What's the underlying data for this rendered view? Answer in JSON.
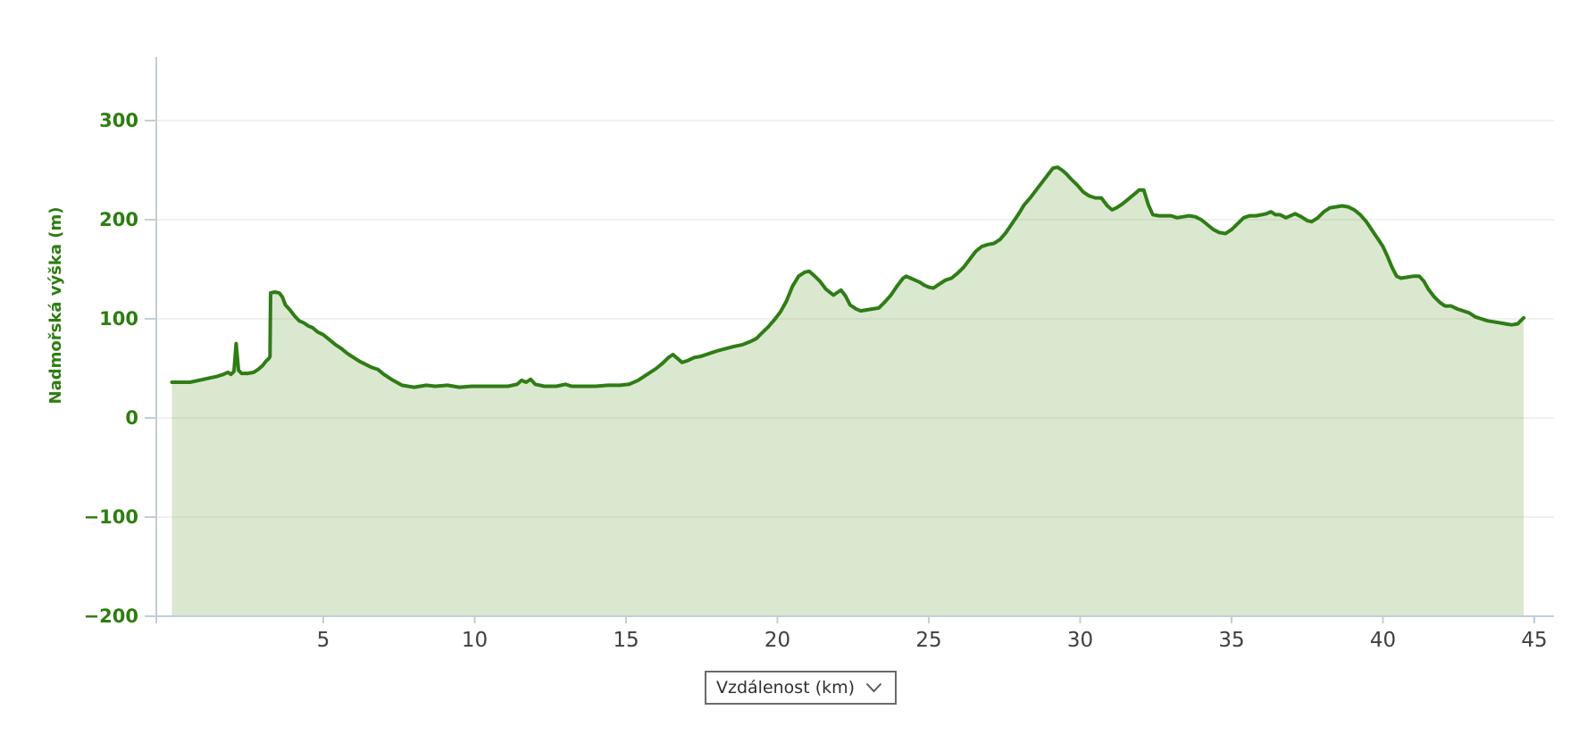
{
  "page": {
    "background": "#ffffff"
  },
  "controls": {
    "x_axis_selector": {
      "value": "Vzdálenost (km)",
      "icon": "chevron-down"
    }
  },
  "chart_data": {
    "type": "area",
    "title": "",
    "xlabel": "Vzdálenost (km)",
    "ylabel": "Nadmořská výška (m)",
    "x_ticks": [
      5,
      10,
      15,
      20,
      25,
      30,
      35,
      40,
      45
    ],
    "y_ticks": [
      300,
      200,
      100,
      0,
      -100,
      -200
    ],
    "y_tick_labels": [
      "300",
      "200",
      "100",
      "0",
      "−100",
      "−200"
    ],
    "xlim": [
      -0.5,
      45.65
    ],
    "ylim": [
      -200,
      363
    ],
    "grid": "horizontal-only",
    "legend": "none",
    "colors": {
      "line": "#2f7d15",
      "fill": "rgba(122,170,83,0.27)",
      "axis": "#c3cdd7",
      "gridline": "#ececec",
      "y_label_text": "#2e7d12",
      "x_label_text": "#3f3f3f"
    },
    "series": [
      {
        "name": "elevation_profile",
        "points": [
          [
            0,
            36
          ],
          [
            0.3,
            36
          ],
          [
            0.6,
            36
          ],
          [
            0.9,
            38
          ],
          [
            1.2,
            40
          ],
          [
            1.5,
            42
          ],
          [
            1.7,
            44
          ],
          [
            1.85,
            46
          ],
          [
            1.95,
            44
          ],
          [
            2.05,
            47
          ],
          [
            2.12,
            75
          ],
          [
            2.2,
            48
          ],
          [
            2.3,
            45
          ],
          [
            2.5,
            45
          ],
          [
            2.7,
            46
          ],
          [
            2.85,
            49
          ],
          [
            3,
            53
          ],
          [
            3.1,
            57
          ],
          [
            3.2,
            60
          ],
          [
            3.24,
            62
          ],
          [
            3.26,
            126
          ],
          [
            3.4,
            127
          ],
          [
            3.55,
            126
          ],
          [
            3.65,
            122
          ],
          [
            3.75,
            114
          ],
          [
            3.9,
            109
          ],
          [
            4.05,
            103
          ],
          [
            4.2,
            98
          ],
          [
            4.35,
            96
          ],
          [
            4.5,
            93
          ],
          [
            4.65,
            91
          ],
          [
            4.8,
            87
          ],
          [
            5,
            84
          ],
          [
            5.2,
            79
          ],
          [
            5.4,
            74
          ],
          [
            5.6,
            70
          ],
          [
            5.8,
            65
          ],
          [
            6,
            61
          ],
          [
            6.2,
            57
          ],
          [
            6.4,
            54
          ],
          [
            6.6,
            51
          ],
          [
            6.8,
            49
          ],
          [
            7,
            44
          ],
          [
            7.3,
            38
          ],
          [
            7.6,
            33
          ],
          [
            8,
            31
          ],
          [
            8.4,
            33
          ],
          [
            8.7,
            32
          ],
          [
            9.1,
            33
          ],
          [
            9.5,
            31
          ],
          [
            9.9,
            32
          ],
          [
            10.3,
            32
          ],
          [
            10.7,
            32
          ],
          [
            11.1,
            32
          ],
          [
            11.4,
            34
          ],
          [
            11.55,
            38
          ],
          [
            11.7,
            36
          ],
          [
            11.85,
            39
          ],
          [
            12,
            34
          ],
          [
            12.3,
            32
          ],
          [
            12.7,
            32
          ],
          [
            13,
            34
          ],
          [
            13.2,
            32
          ],
          [
            13.6,
            32
          ],
          [
            14,
            32
          ],
          [
            14.4,
            33
          ],
          [
            14.8,
            33
          ],
          [
            15.1,
            34
          ],
          [
            15.4,
            38
          ],
          [
            15.7,
            44
          ],
          [
            16,
            50
          ],
          [
            16.2,
            55
          ],
          [
            16.4,
            61
          ],
          [
            16.55,
            64
          ],
          [
            16.7,
            60
          ],
          [
            16.85,
            56
          ],
          [
            17.05,
            58
          ],
          [
            17.25,
            61
          ],
          [
            17.45,
            62
          ],
          [
            17.65,
            64
          ],
          [
            17.85,
            66
          ],
          [
            18.05,
            68
          ],
          [
            18.3,
            70
          ],
          [
            18.55,
            72
          ],
          [
            18.85,
            74
          ],
          [
            19.1,
            77
          ],
          [
            19.3,
            80
          ],
          [
            19.5,
            86
          ],
          [
            19.7,
            92
          ],
          [
            19.9,
            99
          ],
          [
            20.1,
            107
          ],
          [
            20.3,
            118
          ],
          [
            20.5,
            133
          ],
          [
            20.7,
            143
          ],
          [
            20.9,
            147
          ],
          [
            21.05,
            148
          ],
          [
            21.2,
            144
          ],
          [
            21.4,
            138
          ],
          [
            21.6,
            130
          ],
          [
            21.85,
            124
          ],
          [
            22,
            127
          ],
          [
            22.1,
            129
          ],
          [
            22.25,
            123
          ],
          [
            22.4,
            114
          ],
          [
            22.6,
            110
          ],
          [
            22.75,
            108
          ],
          [
            22.95,
            109
          ],
          [
            23.15,
            110
          ],
          [
            23.35,
            111
          ],
          [
            23.55,
            117
          ],
          [
            23.75,
            124
          ],
          [
            23.95,
            133
          ],
          [
            24.15,
            141
          ],
          [
            24.25,
            143
          ],
          [
            24.4,
            141
          ],
          [
            24.55,
            139
          ],
          [
            24.7,
            137
          ],
          [
            24.85,
            134
          ],
          [
            25,
            132
          ],
          [
            25.15,
            131
          ],
          [
            25.35,
            135
          ],
          [
            25.55,
            139
          ],
          [
            25.75,
            141
          ],
          [
            25.95,
            146
          ],
          [
            26.15,
            152
          ],
          [
            26.35,
            160
          ],
          [
            26.55,
            168
          ],
          [
            26.75,
            173
          ],
          [
            26.95,
            175
          ],
          [
            27.15,
            176
          ],
          [
            27.35,
            180
          ],
          [
            27.55,
            187
          ],
          [
            27.75,
            196
          ],
          [
            27.95,
            205
          ],
          [
            28.15,
            215
          ],
          [
            28.35,
            222
          ],
          [
            28.55,
            230
          ],
          [
            28.75,
            238
          ],
          [
            28.95,
            246
          ],
          [
            29.1,
            252
          ],
          [
            29.25,
            253
          ],
          [
            29.4,
            250
          ],
          [
            29.55,
            246
          ],
          [
            29.7,
            241
          ],
          [
            29.9,
            235
          ],
          [
            30.1,
            228
          ],
          [
            30.3,
            224
          ],
          [
            30.5,
            222
          ],
          [
            30.7,
            222
          ],
          [
            30.9,
            214
          ],
          [
            31.05,
            210
          ],
          [
            31.2,
            212
          ],
          [
            31.4,
            216
          ],
          [
            31.6,
            221
          ],
          [
            31.8,
            226
          ],
          [
            31.95,
            230
          ],
          [
            32.1,
            230
          ],
          [
            32.25,
            215
          ],
          [
            32.4,
            205
          ],
          [
            32.6,
            204
          ],
          [
            32.8,
            204
          ],
          [
            33,
            204
          ],
          [
            33.2,
            202
          ],
          [
            33.4,
            203
          ],
          [
            33.6,
            204
          ],
          [
            33.8,
            203
          ],
          [
            34,
            200
          ],
          [
            34.2,
            195
          ],
          [
            34.4,
            190
          ],
          [
            34.6,
            187
          ],
          [
            34.8,
            186
          ],
          [
            35,
            190
          ],
          [
            35.2,
            196
          ],
          [
            35.4,
            202
          ],
          [
            35.6,
            204
          ],
          [
            35.8,
            204
          ],
          [
            36,
            205
          ],
          [
            36.15,
            206
          ],
          [
            36.3,
            208
          ],
          [
            36.45,
            205
          ],
          [
            36.6,
            205
          ],
          [
            36.8,
            202
          ],
          [
            36.95,
            204
          ],
          [
            37.1,
            206
          ],
          [
            37.3,
            203
          ],
          [
            37.5,
            199
          ],
          [
            37.65,
            198
          ],
          [
            37.85,
            202
          ],
          [
            38.05,
            208
          ],
          [
            38.25,
            212
          ],
          [
            38.45,
            213
          ],
          [
            38.65,
            214
          ],
          [
            38.85,
            213
          ],
          [
            39.05,
            210
          ],
          [
            39.25,
            205
          ],
          [
            39.45,
            198
          ],
          [
            39.65,
            189
          ],
          [
            39.85,
            180
          ],
          [
            40,
            173
          ],
          [
            40.15,
            163
          ],
          [
            40.3,
            152
          ],
          [
            40.45,
            143
          ],
          [
            40.6,
            141
          ],
          [
            40.8,
            142
          ],
          [
            41,
            143
          ],
          [
            41.2,
            143
          ],
          [
            41.35,
            138
          ],
          [
            41.5,
            130
          ],
          [
            41.7,
            122
          ],
          [
            41.9,
            116
          ],
          [
            42.05,
            113
          ],
          [
            42.25,
            113
          ],
          [
            42.45,
            110
          ],
          [
            42.65,
            108
          ],
          [
            42.85,
            106
          ],
          [
            43.05,
            102
          ],
          [
            43.25,
            100
          ],
          [
            43.45,
            98
          ],
          [
            43.65,
            97
          ],
          [
            43.85,
            96
          ],
          [
            44.05,
            95
          ],
          [
            44.25,
            94
          ],
          [
            44.45,
            95
          ],
          [
            44.55,
            98
          ],
          [
            44.65,
            101
          ]
        ]
      }
    ]
  }
}
